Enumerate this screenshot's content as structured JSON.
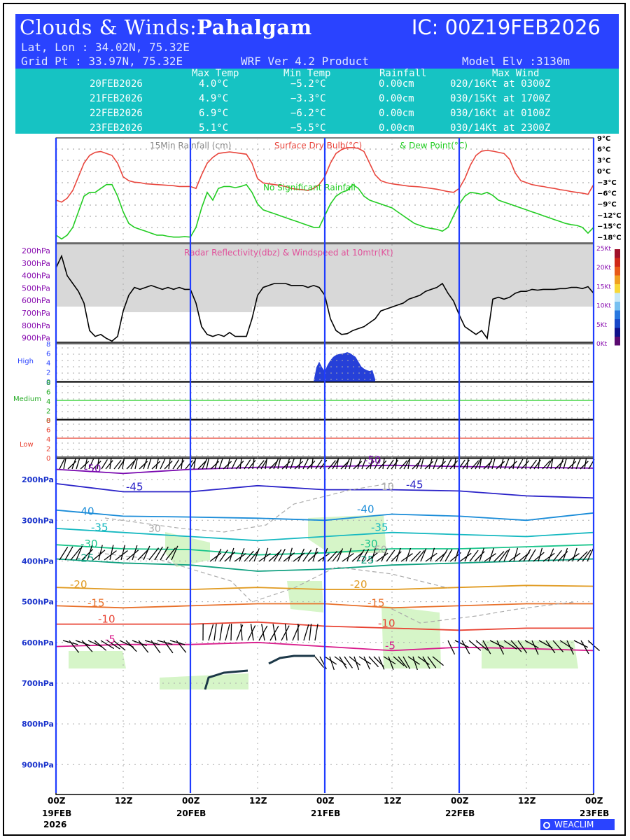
{
  "header": {
    "title_prefix": "Clouds & Winds:",
    "location": "Pahalgam",
    "ic": "IC: 00Z19FEB2026",
    "latlon": "Lat, Lon : 34.02N, 75.32E",
    "gridpt": "Grid Pt  : 33.97N, 75.32E",
    "product": "WRF Ver 4.2 Product",
    "elevation": "Model Elv :3130m"
  },
  "table": {
    "columns": [
      "Max Temp",
      "Min Temp",
      "Rainfall",
      "Max Wind"
    ],
    "rows": [
      {
        "date": "20FEB2026",
        "max": "4.0°C",
        "min": "−5.2°C",
        "rain": "0.00cm",
        "wind": "020/16Kt at 0300Z"
      },
      {
        "date": "21FEB2026",
        "max": "4.9°C",
        "min": "−3.3°C",
        "rain": "0.00cm",
        "wind": "030/15Kt at 1700Z"
      },
      {
        "date": "22FEB2026",
        "max": "6.9°C",
        "min": "−6.2°C",
        "rain": "0.00cm",
        "wind": "030/16Kt at 0100Z"
      },
      {
        "date": "23FEB2026",
        "max": "5.1°C",
        "min": "−5.5°C",
        "rain": "0.00cm",
        "wind": "030/14Kt at 2300Z"
      }
    ]
  },
  "chart_data": [
    {
      "type": "line",
      "name": "surface-meteogram",
      "legend": {
        "rain": "15Min Rainfall (cm)",
        "temp": "Surface Dry Bulb(°C)",
        "dew": "& Dew Point(°C)"
      },
      "annotation": "No Significant Rainfall",
      "yticks": [
        "9°C",
        "6°C",
        "3°C",
        "0°C",
        "−3°C",
        "−6°C",
        "−9°C",
        "−12°C",
        "−15°C",
        "−18°C"
      ],
      "ylim": [
        -18,
        9
      ],
      "xlim_hours": [
        0,
        96
      ],
      "series": [
        {
          "name": "Surface Dry Bulb",
          "color": "#e8453c",
          "hours": [
            0,
            1,
            2,
            3,
            4,
            5,
            6,
            7,
            8,
            9,
            10,
            11,
            12,
            13,
            14,
            15,
            16,
            17,
            18,
            19,
            20,
            21,
            22,
            23,
            24,
            25,
            26,
            27,
            28,
            29,
            30,
            31,
            32,
            33,
            34,
            35,
            36,
            37,
            38,
            39,
            40,
            41,
            42,
            43,
            44,
            45,
            46,
            47,
            48,
            49,
            50,
            51,
            52,
            53,
            54,
            55,
            56,
            57,
            58,
            59,
            60,
            61,
            62,
            63,
            64,
            65,
            66,
            67,
            68,
            69,
            70,
            71,
            72,
            73,
            74,
            75,
            76,
            77,
            78,
            79,
            80,
            81,
            82,
            83,
            84,
            85,
            86,
            87,
            88,
            89,
            90,
            91,
            92,
            93,
            94,
            95,
            96
          ],
          "values": [
            -7,
            -7.5,
            -6.5,
            -4.5,
            -1,
            2.5,
            4.5,
            5.3,
            5.5,
            5,
            4.5,
            2.5,
            -1,
            -2,
            -2.4,
            -2.5,
            -2.8,
            -2.9,
            -3,
            -3.1,
            -3.2,
            -3.3,
            -3.5,
            -3.5,
            -3.5,
            -4,
            -0.5,
            2.5,
            4,
            5,
            5.2,
            5.4,
            5.2,
            5,
            4.8,
            2.5,
            -1.5,
            -2.6,
            -2.8,
            -3,
            -3.2,
            -3.5,
            -4,
            -4.2,
            -4.3,
            -4.5,
            -4,
            -3,
            -1,
            2.5,
            5,
            6,
            6.5,
            6.5,
            6.3,
            5.5,
            2.5,
            -0.5,
            -2,
            -2.5,
            -2.8,
            -3,
            -3.2,
            -3.4,
            -3.5,
            -3.6,
            -3.8,
            -4,
            -4.2,
            -4.5,
            -4.8,
            -5,
            -4,
            -1.5,
            2,
            4.5,
            5.6,
            5.8,
            5.6,
            5.3,
            5,
            3.5,
            0,
            -2,
            -2.5,
            -3,
            -3.3,
            -3.5,
            -3.8,
            -4,
            -4.3,
            -4.5,
            -4.8,
            -5,
            -5.2,
            -5.5,
            -3
          ]
        },
        {
          "name": "Dew Point",
          "color": "#22cc22",
          "hours": [
            0,
            1,
            2,
            3,
            4,
            5,
            6,
            7,
            8,
            9,
            10,
            11,
            12,
            13,
            14,
            15,
            16,
            17,
            18,
            19,
            20,
            21,
            22,
            23,
            24,
            25,
            26,
            27,
            28,
            29,
            30,
            31,
            32,
            33,
            34,
            35,
            36,
            37,
            38,
            39,
            40,
            41,
            42,
            43,
            44,
            45,
            46,
            47,
            48,
            49,
            50,
            51,
            52,
            53,
            54,
            55,
            56,
            57,
            58,
            59,
            60,
            61,
            62,
            63,
            64,
            65,
            66,
            67,
            68,
            69,
            70,
            71,
            72,
            73,
            74,
            75,
            76,
            77,
            78,
            79,
            80,
            81,
            82,
            83,
            84,
            85,
            86,
            87,
            88,
            89,
            90,
            91,
            92,
            93,
            94,
            95,
            96
          ],
          "values": [
            -16,
            -17,
            -16,
            -14,
            -10,
            -6,
            -5,
            -5,
            -4,
            -3,
            -3,
            -6,
            -10,
            -13,
            -14,
            -14.5,
            -15,
            -15.5,
            -16,
            -16,
            -16.3,
            -16.5,
            -16.5,
            -16.4,
            -16.5,
            -14,
            -9,
            -5,
            -7,
            -4,
            -3.5,
            -3.5,
            -3.8,
            -3.5,
            -3,
            -5,
            -8,
            -9.5,
            -10,
            -10.5,
            -11,
            -11.5,
            -12,
            -12.5,
            -13,
            -13.5,
            -14,
            -14,
            -11,
            -8,
            -6,
            -5,
            -4.5,
            -3,
            -4,
            -6,
            -7,
            -7.5,
            -8,
            -8.5,
            -9,
            -10,
            -11,
            -12,
            -13,
            -13.5,
            -14,
            -14.3,
            -14.5,
            -15,
            -14,
            -11,
            -8,
            -6,
            -5,
            -5.2,
            -5.5,
            -5,
            -5.8,
            -7,
            -7.5,
            -8,
            -8.5,
            -9,
            -9.5,
            -10,
            -10.5,
            -11,
            -11.5,
            -12,
            -12.5,
            -13,
            -13.3,
            -13.5,
            -14,
            -15.5,
            -14
          ]
        }
      ]
    },
    {
      "type": "area",
      "name": "radar-reflectivity",
      "title": "Radar Reflectivity(dbz) & Windspeed at 10mtr(Kt)",
      "yticks_left": [
        "200hPa",
        "300hPa",
        "400hPa",
        "500hPa",
        "600hPa",
        "700hPa",
        "800hPa",
        "900hPa"
      ],
      "yticks_right": [
        "25Kt",
        "20Kt",
        "15Kt",
        "10Kt",
        "5Kt",
        "0Kt"
      ],
      "ylim_kt": [
        0,
        25
      ],
      "wind_kt": {
        "hours": [
          0,
          1,
          2,
          3,
          4,
          5,
          6,
          7,
          8,
          9,
          10,
          11,
          12,
          13,
          14,
          15,
          16,
          17,
          18,
          19,
          20,
          21,
          22,
          23,
          24,
          25,
          26,
          27,
          28,
          29,
          30,
          31,
          32,
          33,
          34,
          35,
          36,
          37,
          38,
          39,
          40,
          41,
          42,
          43,
          44,
          45,
          46,
          47,
          48,
          49,
          50,
          51,
          52,
          53,
          54,
          55,
          56,
          57,
          58,
          59,
          60,
          61,
          62,
          63,
          64,
          65,
          66,
          67,
          68,
          69,
          70,
          71,
          72,
          73,
          74,
          75,
          76,
          77,
          78,
          79,
          80,
          81,
          82,
          83,
          84,
          85,
          86,
          87,
          88,
          89,
          90,
          91,
          92,
          93,
          94,
          95,
          96
        ],
        "values": [
          19,
          22,
          17,
          15,
          13,
          10,
          3,
          1.5,
          2,
          1,
          0.3,
          1.5,
          8,
          12,
          14,
          13.5,
          14,
          14.5,
          14,
          13.5,
          14,
          13.5,
          14,
          13.5,
          13.5,
          10,
          4,
          2,
          1.5,
          2,
          1.5,
          2.5,
          1.5,
          1.5,
          1.5,
          6,
          12,
          14,
          14.5,
          15,
          15,
          15,
          14.5,
          14.5,
          14.5,
          14,
          14.5,
          14,
          12,
          6,
          3,
          2,
          2.2,
          3,
          3.5,
          4,
          5,
          6,
          8,
          8.5,
          9,
          9.5,
          10,
          11,
          11.5,
          12,
          13,
          13.5,
          14,
          15,
          12.5,
          10.5,
          7,
          4,
          3,
          2,
          3,
          1,
          11,
          11.5,
          11,
          11.5,
          12.5,
          13,
          13,
          13.5,
          13.3,
          13.5,
          13.5,
          13.5,
          13.7,
          13.7,
          14,
          14,
          13.7,
          14.2,
          12.5
        ]
      },
      "shade_low_cloud_until_hours": 35
    },
    {
      "type": "area",
      "name": "cloud-fraction",
      "levels": [
        "High",
        "Medium",
        "Low"
      ],
      "yticks": [
        "8",
        "6",
        "4",
        "2",
        "0"
      ],
      "ylim_oktas": [
        0,
        8
      ],
      "high_cloud": {
        "hours": [
          46,
          46.5,
          47,
          47.5,
          48,
          48.5,
          49,
          49.5,
          50,
          50.5,
          51,
          51.5,
          52,
          52.5,
          53,
          53.5,
          54,
          54.5,
          55,
          55.5,
          56,
          56.5,
          57
        ],
        "values": [
          0,
          3,
          4.2,
          3,
          2.2,
          3.5,
          4.5,
          5.2,
          5.6,
          5.8,
          5.9,
          6,
          6.2,
          6,
          5.6,
          5.2,
          4.2,
          3.2,
          2.7,
          2.4,
          2.2,
          2.4,
          0.5
        ]
      },
      "medium_line_oktas": 4,
      "low_line_oktas": 4
    },
    {
      "type": "line",
      "name": "upper-air-cross-section",
      "yticks": [
        "200hPa",
        "300hPa",
        "400hPa",
        "500hPa",
        "600hPa",
        "700hPa",
        "800hPa",
        "900hPa"
      ],
      "ylim_hpa": [
        970,
        150
      ],
      "xticks": [
        "00Z",
        "12Z",
        "00Z",
        "12Z",
        "00Z",
        "12Z",
        "00Z",
        "12Z",
        "00Z"
      ],
      "xtick_dates": [
        "19FEB",
        "",
        "20FEB",
        "",
        "21FEB",
        "",
        "22FEB",
        "",
        "23FEB"
      ],
      "xtick_year": "2026",
      "isotherm_labels": [
        "-50",
        "-45",
        "-40",
        "-35",
        "-30",
        "-25",
        "-20",
        "-15",
        "-10",
        "-5"
      ],
      "isotach_labels": [
        "10",
        "30",
        "50"
      ],
      "temperature_isotherms": [
        {
          "label": "-50",
          "color": "#7a0ab0",
          "hours": [
            0,
            12,
            24,
            36,
            48,
            60,
            72,
            84,
            96
          ],
          "hpa": [
            175,
            185,
            175,
            170,
            168,
            165,
            168,
            170,
            172
          ]
        },
        {
          "label": "-45",
          "color": "#2a22c8",
          "hours": [
            0,
            12,
            24,
            36,
            48,
            60,
            72,
            84,
            96
          ],
          "hpa": [
            210,
            230,
            230,
            215,
            225,
            225,
            228,
            240,
            245
          ]
        },
        {
          "label": "-40",
          "color": "#1a8cd8",
          "hours": [
            0,
            12,
            24,
            36,
            48,
            60,
            72,
            84,
            96
          ],
          "hpa": [
            275,
            290,
            292,
            295,
            300,
            285,
            290,
            300,
            282
          ]
        },
        {
          "label": "-35",
          "color": "#14b8c0",
          "hours": [
            0,
            12,
            24,
            36,
            48,
            60,
            72,
            84,
            96
          ],
          "hpa": [
            320,
            330,
            340,
            350,
            340,
            330,
            335,
            340,
            330
          ]
        },
        {
          "label": "-30",
          "color": "#18c48a",
          "hours": [
            0,
            12,
            24,
            36,
            48,
            60,
            72,
            84,
            96
          ],
          "hpa": [
            360,
            370,
            372,
            385,
            380,
            370,
            370,
            365,
            360
          ]
        },
        {
          "label": "-25",
          "color": "#10a080",
          "hours": [
            0,
            12,
            24,
            36,
            48,
            60,
            72,
            84,
            96
          ],
          "hpa": [
            395,
            405,
            410,
            425,
            420,
            410,
            405,
            400,
            395
          ]
        },
        {
          "label": "-20",
          "color": "#e09a20",
          "hours": [
            0,
            12,
            24,
            36,
            48,
            60,
            72,
            84,
            96
          ],
          "hpa": [
            465,
            470,
            470,
            465,
            470,
            470,
            465,
            460,
            462
          ]
        },
        {
          "label": "-15",
          "color": "#e8702a",
          "hours": [
            0,
            12,
            24,
            36,
            48,
            60,
            72,
            84,
            96
          ],
          "hpa": [
            510,
            515,
            510,
            505,
            505,
            515,
            510,
            505,
            505
          ]
        },
        {
          "label": "-10",
          "color": "#e84232",
          "hours": [
            0,
            12,
            24,
            36,
            48,
            60,
            72,
            84,
            96
          ],
          "hpa": [
            555,
            555,
            555,
            550,
            560,
            565,
            570,
            565,
            565
          ]
        },
        {
          "label": "-5",
          "color": "#d81c8c",
          "hours": [
            0,
            12,
            24,
            36,
            48,
            60,
            72,
            84,
            96
          ],
          "hpa": [
            610,
            605,
            605,
            600,
            610,
            620,
            612,
            615,
            620
          ]
        }
      ]
    }
  ],
  "logo": "WEACLIM"
}
